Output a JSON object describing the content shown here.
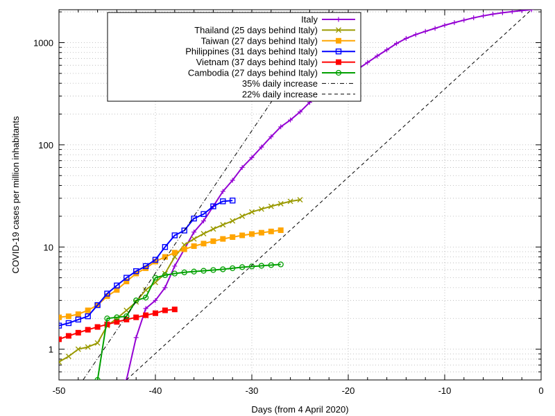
{
  "chart_data": {
    "type": "line",
    "title": "",
    "xlabel": "Days (from 4 April 2020)",
    "ylabel": "COVID-19 cases per million inhabitants",
    "xlim": [
      -50,
      0
    ],
    "ylim": [
      0.5,
      2100
    ],
    "yscale": "log",
    "grid": "dotted",
    "legend_placement": "top-center",
    "x_ticks": [
      "-50",
      "-40",
      "-30",
      "-20",
      "-10",
      "0"
    ],
    "y_ticks": [
      "1",
      "10",
      "100",
      "1000"
    ],
    "series": [
      {
        "name": "Italy",
        "color": "#9400d3",
        "marker": "plus",
        "x": [
          -43,
          -42,
          -41,
          -40,
          -39,
          -38,
          -37,
          -36,
          -35,
          -34,
          -33,
          -32,
          -31,
          -30,
          -29,
          -28,
          -27,
          -26,
          -25,
          -24,
          -23,
          -22,
          -21,
          -20,
          -19,
          -18,
          -17,
          -16,
          -15,
          -14,
          -13,
          -12,
          -11,
          -10,
          -9,
          -8,
          -7,
          -6,
          -5,
          -4,
          -3,
          -2,
          -1
        ],
        "y": [
          0.5,
          1.3,
          2.5,
          3.0,
          4.0,
          6.5,
          9.5,
          14,
          18,
          25,
          35,
          45,
          60,
          75,
          95,
          120,
          150,
          175,
          210,
          260,
          320,
          380,
          430,
          480,
          550,
          640,
          740,
          850,
          980,
          1100,
          1200,
          1290,
          1380,
          1480,
          1570,
          1660,
          1750,
          1830,
          1900,
          1960,
          2010,
          2060,
          2100
        ]
      },
      {
        "name": "Thailand (25 days behind Italy)",
        "color": "#9a9a00",
        "marker": "cross",
        "x": [
          -50,
          -49,
          -48,
          -47,
          -46,
          -45,
          -44,
          -43,
          -42,
          -41,
          -40,
          -39,
          -38,
          -37,
          -36,
          -35,
          -34,
          -33,
          -32,
          -31,
          -30,
          -29,
          -28,
          -27,
          -26,
          -25
        ],
        "y": [
          0.75,
          0.85,
          1.0,
          1.05,
          1.15,
          1.7,
          2.0,
          2.4,
          2.9,
          3.8,
          4.5,
          5.5,
          8.0,
          10.5,
          12,
          13.5,
          15,
          16.5,
          18,
          20,
          22,
          23.5,
          25,
          26.5,
          28,
          29
        ]
      },
      {
        "name": "Taiwan (27 days behind Italy)",
        "color": "#ffa500",
        "marker": "square-filled",
        "x": [
          -50,
          -49,
          -48,
          -47,
          -46,
          -45,
          -44,
          -43,
          -42,
          -41,
          -40,
          -39,
          -38,
          -37,
          -36,
          -35,
          -34,
          -33,
          -32,
          -31,
          -30,
          -29,
          -28,
          -27
        ],
        "y": [
          2.05,
          2.1,
          2.2,
          2.4,
          2.7,
          3.3,
          3.8,
          4.6,
          5.5,
          6.2,
          7.2,
          8.0,
          8.8,
          9.5,
          10.2,
          10.8,
          11.4,
          12,
          12.5,
          13,
          13.4,
          13.8,
          14.2,
          14.6
        ]
      },
      {
        "name": "Philippines (31 days behind Italy)",
        "color": "#0000ff",
        "marker": "square-open",
        "x": [
          -50,
          -49,
          -48,
          -47,
          -46,
          -45,
          -44,
          -43,
          -42,
          -41,
          -40,
          -39,
          -38,
          -37,
          -36,
          -35,
          -34,
          -33,
          -32
        ],
        "y": [
          1.7,
          1.8,
          1.95,
          2.1,
          2.7,
          3.5,
          4.2,
          5.0,
          5.8,
          6.5,
          7.5,
          10,
          13,
          14.5,
          19,
          21,
          25,
          28,
          28.5
        ]
      },
      {
        "name": "Vietnam (37 days behind Italy)",
        "color": "#ff0000",
        "marker": "square-filled",
        "x": [
          -50,
          -49,
          -48,
          -47,
          -46,
          -45,
          -44,
          -43,
          -42,
          -41,
          -40,
          -39,
          -38
        ],
        "y": [
          1.25,
          1.35,
          1.45,
          1.55,
          1.65,
          1.75,
          1.85,
          1.95,
          2.05,
          2.15,
          2.25,
          2.4,
          2.45
        ]
      },
      {
        "name": "Cambodia (27 days behind Italy)",
        "color": "#00a000",
        "marker": "circle-open",
        "x": [
          -46,
          -45,
          -44,
          -43,
          -42,
          -41,
          -40,
          -39,
          -38,
          -37,
          -36,
          -35,
          -34,
          -33,
          -32,
          -31,
          -30,
          -29,
          -28,
          -27
        ],
        "y": [
          0.5,
          2.0,
          2.05,
          2.1,
          3.0,
          3.2,
          5.0,
          5.3,
          5.5,
          5.65,
          5.75,
          5.85,
          5.95,
          6.05,
          6.2,
          6.35,
          6.45,
          6.55,
          6.65,
          6.75
        ]
      },
      {
        "name": "35% daily increase",
        "color": "#000000",
        "dash": "dash-dot",
        "x": [
          -47.5,
          -21.5
        ],
        "y": [
          0.5,
          2100
        ]
      },
      {
        "name": "22% daily increase",
        "color": "#000000",
        "dash": "dashed",
        "x": [
          -43.0,
          -1.0
        ],
        "y": [
          0.5,
          2100
        ]
      }
    ]
  }
}
